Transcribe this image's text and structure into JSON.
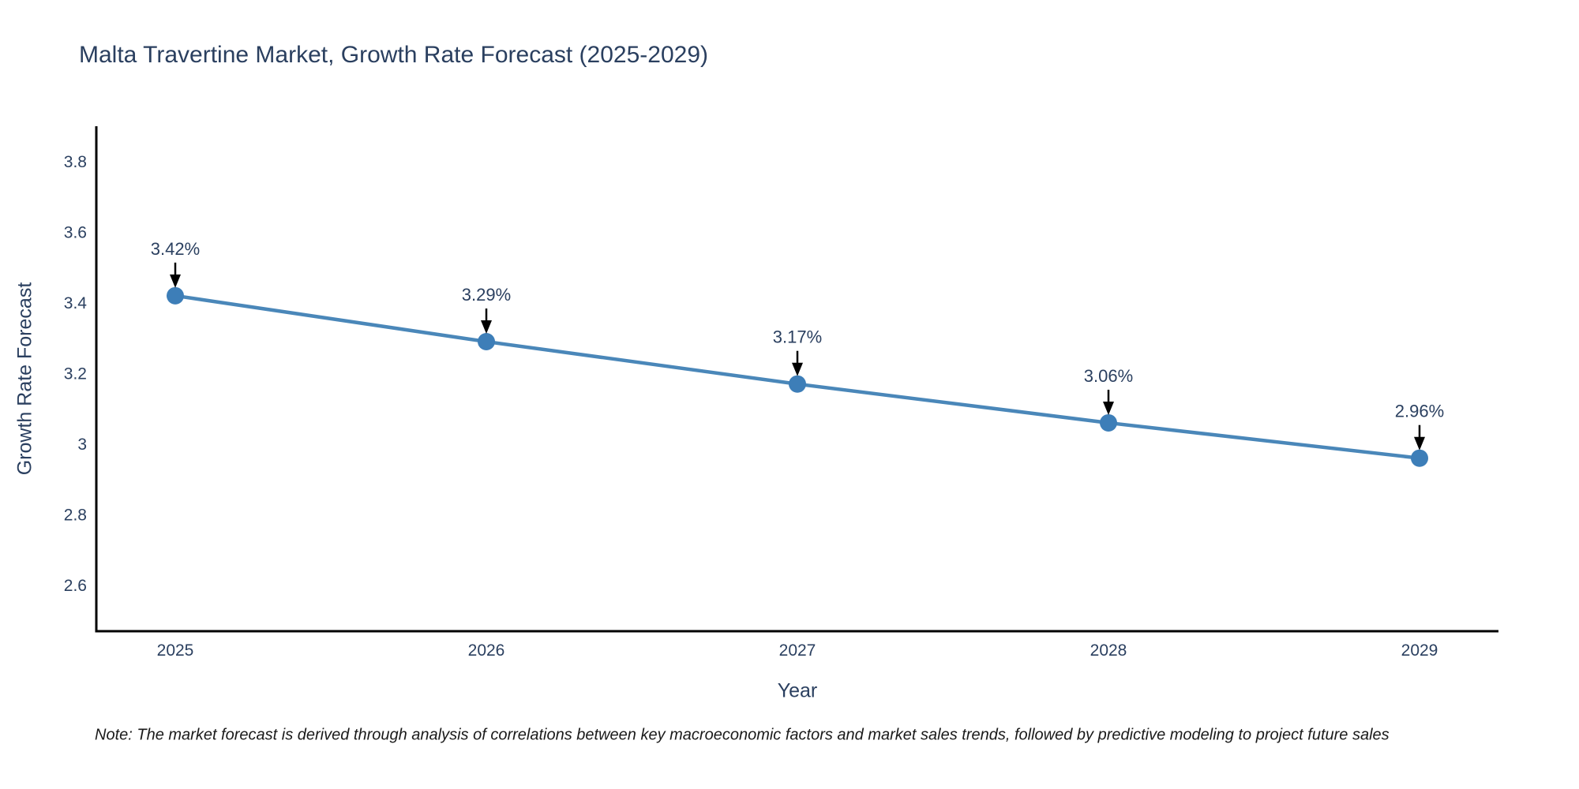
{
  "header": {
    "title": "Malta Travertine Market, Growth Rate Forecast (2025-2029)"
  },
  "chart_data": {
    "type": "line",
    "title": "Malta Travertine Market, Growth Rate Forecast (2025-2029)",
    "xlabel": "Year",
    "ylabel": "Growth Rate Forecast",
    "x": [
      2025,
      2026,
      2027,
      2028,
      2029
    ],
    "values": [
      3.42,
      3.29,
      3.17,
      3.06,
      2.96
    ],
    "point_labels": [
      "3.42%",
      "3.29%",
      "3.17%",
      "3.06%",
      "2.96%"
    ],
    "ytick_labels": [
      "3.8",
      "3.6",
      "3.4",
      "3.2",
      "3",
      "2.8",
      "2.6"
    ],
    "ytick_values": [
      3.8,
      3.6,
      3.4,
      3.2,
      3.0,
      2.8,
      2.6
    ],
    "ylim": [
      2.47,
      3.9
    ],
    "grid": false,
    "legend": "none",
    "line_color": "#4a87b9",
    "marker_color": "#3d7eb8",
    "axis_color": "#000000",
    "annotation_arrow_color": "#000000",
    "text_color": "#2a3f5f"
  },
  "footnote": {
    "text": "Note: The market forecast is derived through analysis of correlations between key macroeconomic factors and market sales trends, followed by predictive modeling to project future sales"
  }
}
